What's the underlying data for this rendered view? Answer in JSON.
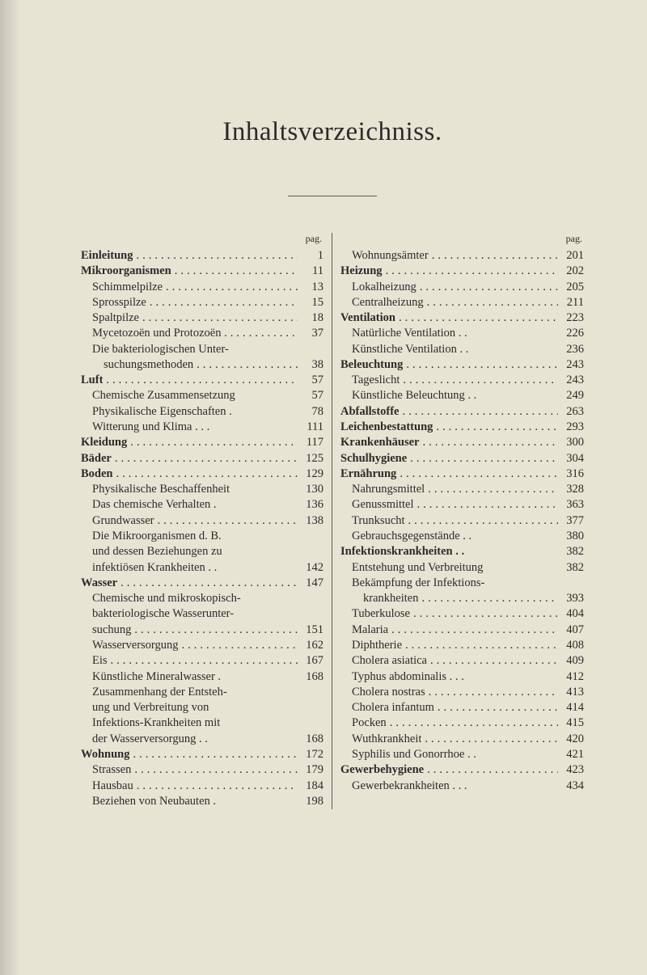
{
  "title": "Inhaltsverzeichniss.",
  "pag_label": "pag.",
  "colors": {
    "background": "#e8e4d4",
    "text": "#2a2a2a",
    "rule": "#5a5a5a"
  },
  "left_column": [
    {
      "label": "Einleitung",
      "page": "1",
      "bold": true,
      "sub": false
    },
    {
      "label": "Mikroorganismen",
      "page": "11",
      "bold": true,
      "sub": false
    },
    {
      "label": "Schimmelpilze",
      "page": "13",
      "bold": false,
      "sub": true
    },
    {
      "label": "Sprosspilze",
      "page": "15",
      "bold": false,
      "sub": true
    },
    {
      "label": "Spaltpilze",
      "page": "18",
      "bold": false,
      "sub": true
    },
    {
      "label": "Mycetozoën und Protozoën .",
      "page": "37",
      "bold": false,
      "sub": true
    },
    {
      "label": "Die bakteriologischen Unter-",
      "page": "",
      "bold": false,
      "sub": true,
      "nodots": true
    },
    {
      "label": "suchungsmethoden",
      "page": "38",
      "bold": false,
      "sub": true,
      "cont": true
    },
    {
      "label": "Luft",
      "page": "57",
      "bold": true,
      "sub": false
    },
    {
      "label": "Chemische Zusammensetzung",
      "page": "57",
      "bold": false,
      "sub": true,
      "nodots": true
    },
    {
      "label": "Physikalische Eigenschaften .",
      "page": "78",
      "bold": false,
      "sub": true,
      "nodots": true
    },
    {
      "label": "Witterung und Klima .  .  .",
      "page": "111",
      "bold": false,
      "sub": true,
      "nodots": true
    },
    {
      "label": "Kleidung",
      "page": "117",
      "bold": true,
      "sub": false
    },
    {
      "label": "Bäder",
      "page": "125",
      "bold": true,
      "sub": false
    },
    {
      "label": "Boden",
      "page": "129",
      "bold": true,
      "sub": false
    },
    {
      "label": "Physikalische Beschaffenheit",
      "page": "130",
      "bold": false,
      "sub": true,
      "nodots": true
    },
    {
      "label": "Das chemische Verhalten  .",
      "page": "136",
      "bold": false,
      "sub": true,
      "nodots": true
    },
    {
      "label": "Grundwasser",
      "page": "138",
      "bold": false,
      "sub": true
    },
    {
      "label": "Die Mikroorganismen d. B.",
      "page": "",
      "bold": false,
      "sub": true,
      "nodots": true
    },
    {
      "label": "und dessen Beziehungen zu",
      "page": "",
      "bold": false,
      "sub": true,
      "nodots": true
    },
    {
      "label": "infektiösen Krankheiten .  .",
      "page": "142",
      "bold": false,
      "sub": true,
      "nodots": true
    },
    {
      "label": "Wasser",
      "page": "147",
      "bold": true,
      "sub": false
    },
    {
      "label": "Chemische und mikroskopisch-",
      "page": "",
      "bold": false,
      "sub": true,
      "nodots": true
    },
    {
      "label": "bakteriologische Wasserunter-",
      "page": "",
      "bold": false,
      "sub": true,
      "nodots": true
    },
    {
      "label": "suchung",
      "page": "151",
      "bold": false,
      "sub": true
    },
    {
      "label": "Wasserversorgung",
      "page": "162",
      "bold": false,
      "sub": true
    },
    {
      "label": "Eis",
      "page": "167",
      "bold": false,
      "sub": true
    },
    {
      "label": "Künstliche Mineralwasser  .",
      "page": "168",
      "bold": false,
      "sub": true,
      "nodots": true
    },
    {
      "label": "Zusammenhang der Entsteh-",
      "page": "",
      "bold": false,
      "sub": true,
      "nodots": true
    },
    {
      "label": "ung und Verbreitung von",
      "page": "",
      "bold": false,
      "sub": true,
      "nodots": true
    },
    {
      "label": "Infektions-Krankheiten mit",
      "page": "",
      "bold": false,
      "sub": true,
      "nodots": true
    },
    {
      "label": "der Wasserversorgung  .  .",
      "page": "168",
      "bold": false,
      "sub": true,
      "nodots": true
    },
    {
      "label": "Wohnung",
      "page": "172",
      "bold": true,
      "sub": false
    },
    {
      "label": "Strassen",
      "page": "179",
      "bold": false,
      "sub": true
    },
    {
      "label": "Hausbau",
      "page": "184",
      "bold": false,
      "sub": true
    },
    {
      "label": "Beziehen von Neubauten  .",
      "page": "198",
      "bold": false,
      "sub": true,
      "nodots": true
    }
  ],
  "right_column": [
    {
      "label": "Wohnungsämter",
      "page": "201",
      "bold": false,
      "sub": true
    },
    {
      "label": "Heizung",
      "page": "202",
      "bold": true,
      "sub": false
    },
    {
      "label": "Lokalheizung",
      "page": "205",
      "bold": false,
      "sub": true
    },
    {
      "label": "Centralheizung",
      "page": "211",
      "bold": false,
      "sub": true
    },
    {
      "label": "Ventilation",
      "page": "223",
      "bold": true,
      "sub": false
    },
    {
      "label": "Natürliche Ventilation  .  .",
      "page": "226",
      "bold": false,
      "sub": true,
      "nodots": true
    },
    {
      "label": "Künstliche Ventilation  .  .",
      "page": "236",
      "bold": false,
      "sub": true,
      "nodots": true
    },
    {
      "label": "Beleuchtung",
      "page": "243",
      "bold": true,
      "sub": false
    },
    {
      "label": "Tageslicht",
      "page": "243",
      "bold": false,
      "sub": true
    },
    {
      "label": "Künstliche Beleuchtung .  .",
      "page": "249",
      "bold": false,
      "sub": true,
      "nodots": true
    },
    {
      "label": "Abfallstoffe",
      "page": "263",
      "bold": true,
      "sub": false
    },
    {
      "label": "Leichenbestattung",
      "page": "293",
      "bold": true,
      "sub": false
    },
    {
      "label": "Krankenhäuser",
      "page": "300",
      "bold": true,
      "sub": false
    },
    {
      "label": "Schulhygiene",
      "page": "304",
      "bold": true,
      "sub": false
    },
    {
      "label": "Ernährung",
      "page": "316",
      "bold": true,
      "sub": false
    },
    {
      "label": "Nahrungsmittel",
      "page": "328",
      "bold": false,
      "sub": true
    },
    {
      "label": "Genussmittel",
      "page": "363",
      "bold": false,
      "sub": true
    },
    {
      "label": "Trunksucht",
      "page": "377",
      "bold": false,
      "sub": true
    },
    {
      "label": "Gebrauchsgegenstände  .  .",
      "page": "380",
      "bold": false,
      "sub": true,
      "nodots": true
    },
    {
      "label": "Infektionskrankheiten  .  .",
      "page": "382",
      "bold": true,
      "sub": false,
      "nodots": true
    },
    {
      "label": "Entstehung und Verbreitung",
      "page": "382",
      "bold": false,
      "sub": true,
      "nodots": true
    },
    {
      "label": "Bekämpfung der Infektions-",
      "page": "",
      "bold": false,
      "sub": true,
      "nodots": true
    },
    {
      "label": "krankheiten",
      "page": "393",
      "bold": false,
      "sub": true,
      "cont": true
    },
    {
      "label": "Tuberkulose",
      "page": "404",
      "bold": false,
      "sub": true
    },
    {
      "label": "Malaria",
      "page": "407",
      "bold": false,
      "sub": true
    },
    {
      "label": "Diphtherie",
      "page": "408",
      "bold": false,
      "sub": true
    },
    {
      "label": "Cholera asiatica",
      "page": "409",
      "bold": false,
      "sub": true
    },
    {
      "label": "Typhus abdominalis .  .  .",
      "page": "412",
      "bold": false,
      "sub": true,
      "nodots": true
    },
    {
      "label": "Cholera nostras",
      "page": "413",
      "bold": false,
      "sub": true
    },
    {
      "label": "Cholera infantum",
      "page": "414",
      "bold": false,
      "sub": true
    },
    {
      "label": "Pocken",
      "page": "415",
      "bold": false,
      "sub": true
    },
    {
      "label": "Wuthkrankheit",
      "page": "420",
      "bold": false,
      "sub": true
    },
    {
      "label": "Syphilis und Gonorrhoe .  .",
      "page": "421",
      "bold": false,
      "sub": true,
      "nodots": true
    },
    {
      "label": "Gewerbehygiene",
      "page": "423",
      "bold": true,
      "sub": false
    },
    {
      "label": "Gewerbekrankheiten .  .  .",
      "page": "434",
      "bold": false,
      "sub": true,
      "nodots": true
    }
  ]
}
